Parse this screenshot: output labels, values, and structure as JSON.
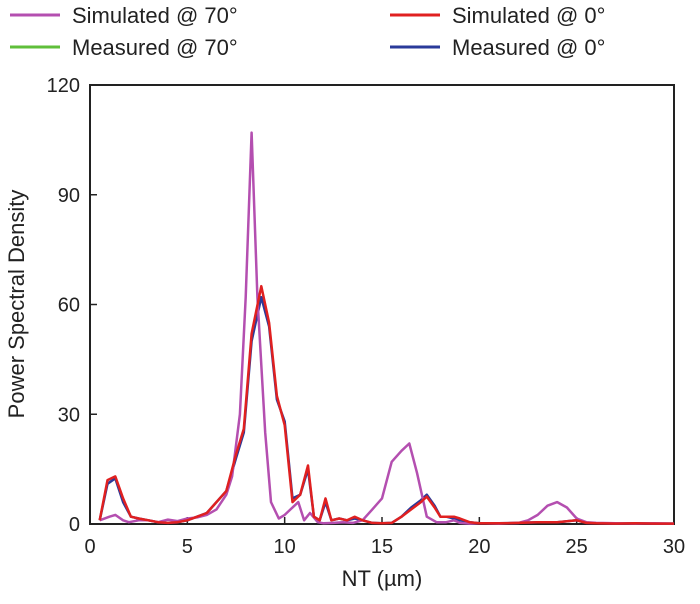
{
  "chart_data": {
    "type": "line",
    "title": "",
    "xlabel": "NT (µm)",
    "ylabel": "Power Spectral Density",
    "xlim": [
      0,
      30
    ],
    "ylim": [
      0,
      120
    ],
    "xticks": [
      0,
      5,
      10,
      15,
      20,
      25,
      30
    ],
    "yticks": [
      0,
      30,
      60,
      90,
      120
    ],
    "grid": false,
    "legend_position": "top",
    "series": [
      {
        "name": "Simulated @ 70°",
        "color": "#b44fb0",
        "points": [
          [
            0.5,
            1
          ],
          [
            1,
            2
          ],
          [
            1.3,
            2.5
          ],
          [
            1.7,
            1
          ],
          [
            2,
            0.5
          ],
          [
            2.5,
            1
          ],
          [
            3,
            1
          ],
          [
            3.5,
            0.5
          ],
          [
            4,
            1.2
          ],
          [
            4.5,
            0.8
          ],
          [
            5,
            1.5
          ],
          [
            5.5,
            1.8
          ],
          [
            6,
            2.5
          ],
          [
            6.5,
            4
          ],
          [
            7,
            8
          ],
          [
            7.3,
            13
          ],
          [
            7.7,
            30
          ],
          [
            8,
            62
          ],
          [
            8.3,
            107
          ],
          [
            8.6,
            62
          ],
          [
            9,
            25
          ],
          [
            9.3,
            6
          ],
          [
            9.7,
            1.5
          ],
          [
            10,
            2.5
          ],
          [
            10.3,
            4
          ],
          [
            10.7,
            6
          ],
          [
            11,
            1
          ],
          [
            11.3,
            3
          ],
          [
            11.7,
            0.5
          ],
          [
            12,
            0.2
          ],
          [
            12.5,
            0.3
          ],
          [
            13,
            0.5
          ],
          [
            13.5,
            0.3
          ],
          [
            14,
            1
          ],
          [
            14.5,
            4
          ],
          [
            15,
            7
          ],
          [
            15.5,
            17
          ],
          [
            16,
            20
          ],
          [
            16.4,
            22
          ],
          [
            16.8,
            14
          ],
          [
            17.3,
            2
          ],
          [
            17.8,
            0.5
          ],
          [
            18.3,
            0.5
          ],
          [
            18.7,
            1
          ],
          [
            19,
            0.3
          ],
          [
            19.5,
            0.1
          ],
          [
            20,
            0.2
          ],
          [
            21,
            0.1
          ],
          [
            22,
            0.3
          ],
          [
            22.5,
            1
          ],
          [
            23,
            2.5
          ],
          [
            23.5,
            5
          ],
          [
            24,
            6
          ],
          [
            24.5,
            4.5
          ],
          [
            25,
            1.5
          ],
          [
            25.5,
            0.5
          ],
          [
            26,
            0.3
          ],
          [
            27,
            0.2
          ],
          [
            28,
            0.1
          ],
          [
            29,
            0.2
          ],
          [
            30,
            0.1
          ]
        ]
      },
      {
        "name": "Simulated @ 0°",
        "color": "#e02020",
        "points": [
          [
            0.5,
            1
          ],
          [
            0.9,
            12
          ],
          [
            1.3,
            13
          ],
          [
            1.7,
            7
          ],
          [
            2.1,
            2
          ],
          [
            2.5,
            1.5
          ],
          [
            3,
            1
          ],
          [
            3.5,
            0.5
          ],
          [
            4,
            0.3
          ],
          [
            4.5,
            0.5
          ],
          [
            5,
            1
          ],
          [
            5.5,
            2
          ],
          [
            6,
            3
          ],
          [
            6.5,
            6
          ],
          [
            7,
            9
          ],
          [
            7.5,
            19
          ],
          [
            7.9,
            26
          ],
          [
            8.3,
            52
          ],
          [
            8.8,
            65
          ],
          [
            9.2,
            55
          ],
          [
            9.6,
            35
          ],
          [
            10,
            27
          ],
          [
            10.4,
            6
          ],
          [
            10.8,
            8
          ],
          [
            11.2,
            16
          ],
          [
            11.5,
            2
          ],
          [
            11.8,
            1
          ],
          [
            12.1,
            7
          ],
          [
            12.4,
            1
          ],
          [
            12.8,
            1.5
          ],
          [
            13.2,
            1
          ],
          [
            13.6,
            2
          ],
          [
            14,
            1
          ],
          [
            14.5,
            0.3
          ],
          [
            15,
            0.2
          ],
          [
            15.5,
            0.3
          ],
          [
            16,
            2
          ],
          [
            16.5,
            4
          ],
          [
            17,
            6
          ],
          [
            17.3,
            7.5
          ],
          [
            17.7,
            4.5
          ],
          [
            18,
            2
          ],
          [
            18.3,
            2
          ],
          [
            18.7,
            2
          ],
          [
            19,
            1.5
          ],
          [
            19.5,
            0.5
          ],
          [
            20,
            0.2
          ],
          [
            21,
            0.2
          ],
          [
            22,
            0.3
          ],
          [
            23,
            0.5
          ],
          [
            24,
            0.5
          ],
          [
            25,
            1
          ],
          [
            25.5,
            0.3
          ],
          [
            26,
            0.2
          ],
          [
            27,
            0.1
          ],
          [
            28,
            0.2
          ],
          [
            29,
            0.1
          ],
          [
            30,
            0.1
          ]
        ]
      },
      {
        "name": "Measured @ 70°",
        "color": "#5fbf3a",
        "points": []
      },
      {
        "name": "Measured @ 0°",
        "color": "#2a3a9a",
        "points": [
          [
            0.5,
            1
          ],
          [
            0.9,
            11
          ],
          [
            1.3,
            12.5
          ],
          [
            1.7,
            6
          ],
          [
            2.1,
            2
          ],
          [
            2.5,
            1.5
          ],
          [
            3,
            1
          ],
          [
            3.5,
            0.5
          ],
          [
            4,
            0.3
          ],
          [
            4.5,
            0.5
          ],
          [
            5,
            1
          ],
          [
            5.5,
            2
          ],
          [
            6,
            3
          ],
          [
            6.5,
            6
          ],
          [
            7,
            9
          ],
          [
            7.5,
            18
          ],
          [
            7.9,
            25
          ],
          [
            8.3,
            50
          ],
          [
            8.8,
            62
          ],
          [
            9.2,
            54
          ],
          [
            9.6,
            34
          ],
          [
            10,
            28
          ],
          [
            10.4,
            7
          ],
          [
            10.8,
            8
          ],
          [
            11.2,
            15
          ],
          [
            11.5,
            2
          ],
          [
            11.8,
            1
          ],
          [
            12.1,
            6
          ],
          [
            12.4,
            1
          ],
          [
            12.8,
            1.5
          ],
          [
            13.2,
            1
          ],
          [
            13.6,
            1.5
          ],
          [
            14,
            1
          ],
          [
            14.5,
            0.3
          ],
          [
            15,
            0.2
          ],
          [
            15.5,
            0.3
          ],
          [
            16,
            2
          ],
          [
            16.5,
            4.5
          ],
          [
            17,
            6.5
          ],
          [
            17.3,
            8
          ],
          [
            17.7,
            5
          ],
          [
            18,
            2
          ],
          [
            18.3,
            2
          ],
          [
            18.7,
            1.5
          ],
          [
            19,
            1
          ],
          [
            19.5,
            0.5
          ],
          [
            20,
            0.2
          ],
          [
            21,
            0.2
          ],
          [
            22,
            0.3
          ],
          [
            23,
            0.5
          ],
          [
            24,
            0.5
          ],
          [
            25,
            1
          ],
          [
            25.5,
            0.3
          ],
          [
            26,
            0.2
          ],
          [
            27,
            0.1
          ],
          [
            28,
            0.2
          ],
          [
            29,
            0.1
          ],
          [
            30,
            0.1
          ]
        ]
      }
    ]
  }
}
